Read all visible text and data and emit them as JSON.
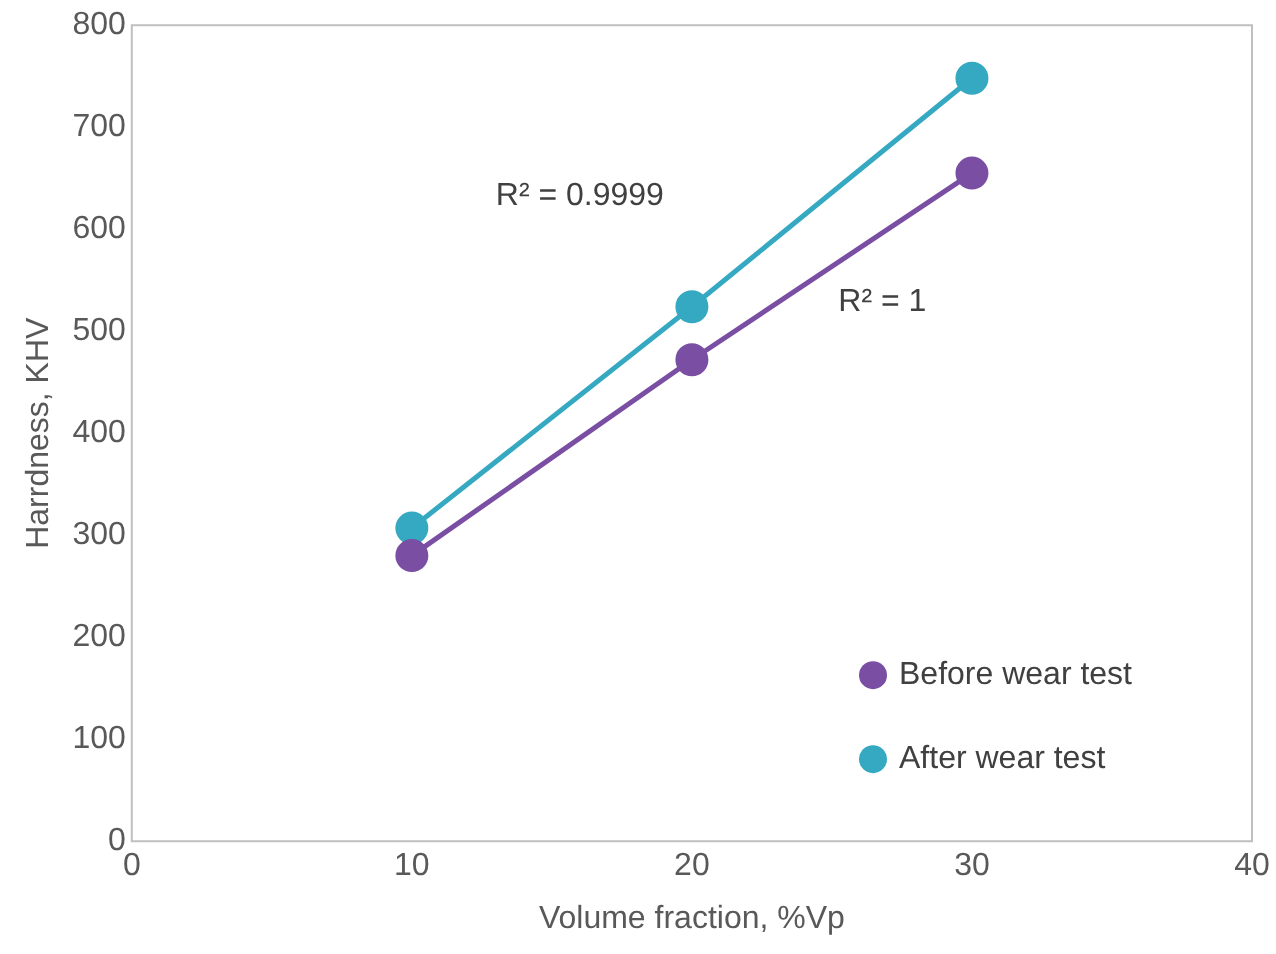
{
  "chart_data": {
    "type": "line",
    "xlabel": "Volume fraction, %Vp",
    "ylabel": "Harrdness, KHV",
    "x": [
      10,
      20,
      30
    ],
    "series": [
      {
        "name": "Before wear test",
        "color": "#7a4ea3",
        "values": [
          280,
          472,
          655
        ]
      },
      {
        "name": "After wear test",
        "color": "#35a9c2",
        "values": [
          307,
          524,
          748
        ]
      }
    ],
    "xlim": [
      0,
      40
    ],
    "xticks": [
      0,
      10,
      20,
      30,
      40
    ],
    "ylim": [
      0,
      800
    ],
    "yticks": [
      0,
      100,
      200,
      300,
      400,
      500,
      600,
      700,
      800
    ],
    "annotations": [
      "R² = 0.9999",
      "R² = 1"
    ],
    "legend": "bottom right",
    "grid": false,
    "marker": "circle",
    "line_style": "solid"
  }
}
